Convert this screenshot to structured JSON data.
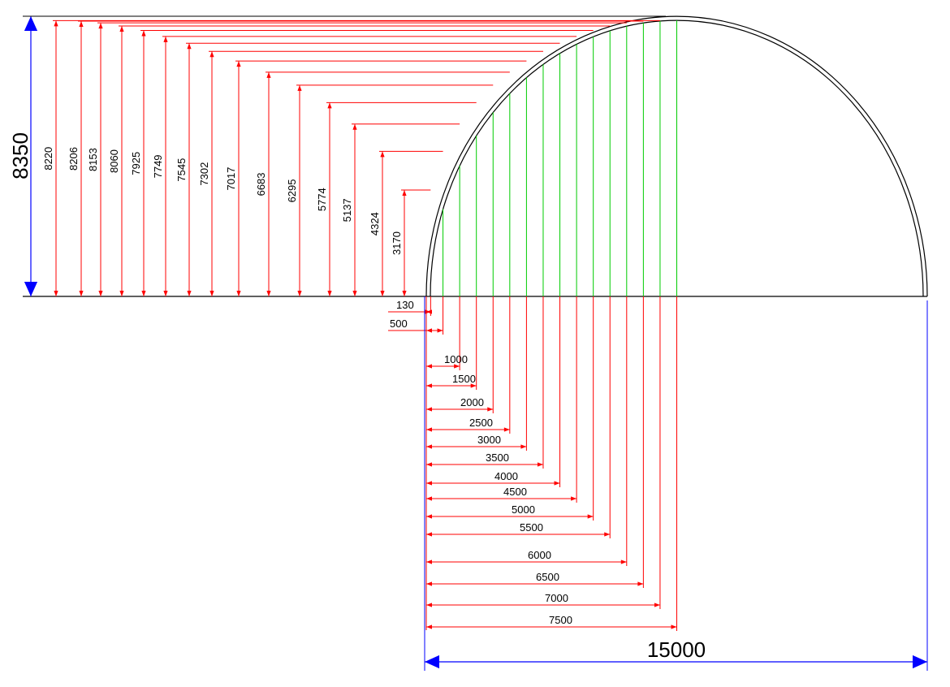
{
  "diagram": {
    "total_height_label": "8350",
    "total_width_label": "15000",
    "total_height": 8350,
    "total_width": 15000,
    "colors": {
      "dimension": "#ff0000",
      "section_line": "#00cc00",
      "overall_dimension": "#0000ff",
      "outline": "#000000"
    },
    "height_stations": [
      {
        "x": 130,
        "height": 3170,
        "label": "3170"
      },
      {
        "x": 500,
        "height": 4324,
        "label": "4324"
      },
      {
        "x": 1000,
        "height": 5137,
        "label": "5137"
      },
      {
        "x": 1500,
        "height": 5774,
        "label": "5774"
      },
      {
        "x": 2000,
        "height": 6295,
        "label": "6295"
      },
      {
        "x": 2500,
        "height": 6683,
        "label": "6683"
      },
      {
        "x": 3000,
        "height": 7017,
        "label": "7017"
      },
      {
        "x": 3500,
        "height": 7302,
        "label": "7302"
      },
      {
        "x": 4000,
        "height": 7545,
        "label": "7545"
      },
      {
        "x": 4500,
        "height": 7749,
        "label": "7749"
      },
      {
        "x": 5000,
        "height": 7925,
        "label": "7925"
      },
      {
        "x": 5500,
        "height": 8060,
        "label": "8060"
      },
      {
        "x": 6000,
        "height": 8153,
        "label": "8153"
      },
      {
        "x": 6500,
        "height": 8206,
        "label": "8206"
      },
      {
        "x": 7000,
        "height": 8220,
        "label": "8220"
      }
    ],
    "width_labels": [
      "130",
      "500",
      "1000",
      "1500",
      "2000",
      "2500",
      "3000",
      "3500",
      "4000",
      "4500",
      "5000",
      "5500",
      "6000",
      "6500",
      "7000",
      "7500"
    ],
    "width_values": [
      130,
      500,
      1000,
      1500,
      2000,
      2500,
      3000,
      3500,
      4000,
      4500,
      5000,
      5500,
      6000,
      6500,
      7000,
      7500
    ]
  }
}
